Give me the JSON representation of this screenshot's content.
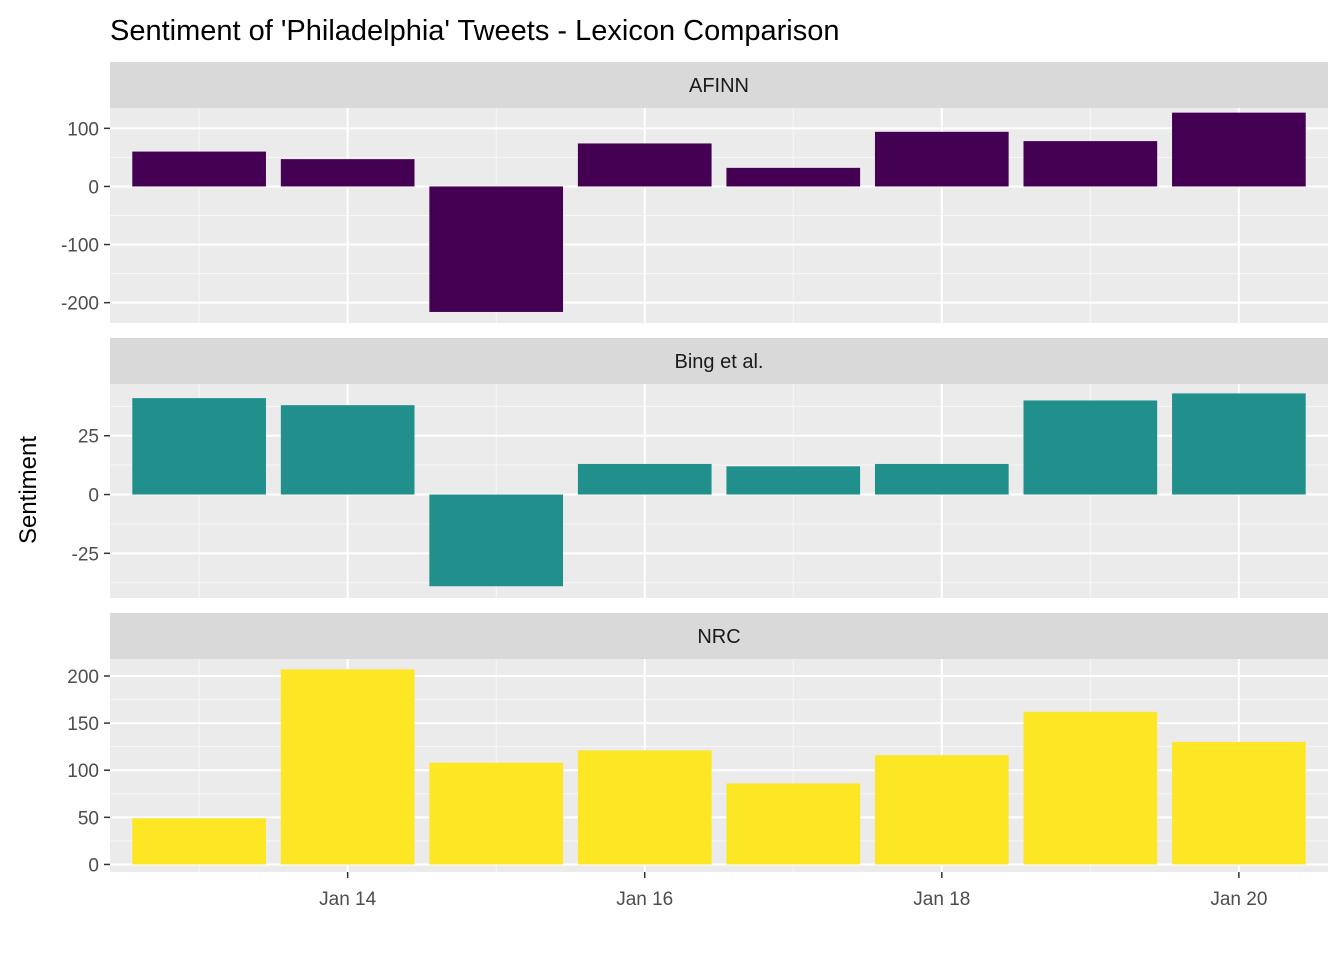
{
  "chart_data": {
    "type": "bar",
    "title": "Sentiment of 'Philadelphia' Tweets - Lexicon Comparison",
    "ylabel": "Sentiment",
    "x": [
      "2019-01-13",
      "2019-01-14",
      "2019-01-15",
      "2019-01-16",
      "2019-01-17",
      "2019-01-18",
      "2019-01-19",
      "2019-01-20"
    ],
    "x_ticks": [
      {
        "date": "2019-01-14",
        "label": "Jan 14"
      },
      {
        "date": "2019-01-16",
        "label": "Jan 16"
      },
      {
        "date": "2019-01-18",
        "label": "Jan 18"
      },
      {
        "date": "2019-01-20",
        "label": "Jan 20"
      }
    ],
    "grid": true,
    "facets": [
      {
        "name": "AFINN",
        "color": "#440154",
        "values": [
          60,
          47,
          -216,
          74,
          32,
          94,
          78,
          127
        ],
        "ylim": [
          -235,
          135
        ],
        "y_ticks": [
          100,
          0,
          -100,
          -200
        ],
        "y_tick_labels": [
          "100",
          "0",
          "-100",
          "-200"
        ]
      },
      {
        "name": "Bing et al.",
        "color": "#21908C",
        "values": [
          41,
          38,
          -39,
          13,
          12,
          13,
          40,
          43
        ],
        "ylim": [
          -44,
          47
        ],
        "y_ticks": [
          25,
          0,
          -25
        ],
        "y_tick_labels": [
          "25",
          "0",
          "-25"
        ]
      },
      {
        "name": "NRC",
        "color": "#FDE725",
        "values": [
          49,
          207,
          108,
          121,
          86,
          116,
          162,
          130
        ],
        "ylim": [
          -8,
          218
        ],
        "y_ticks": [
          200,
          150,
          100,
          50,
          0
        ],
        "y_tick_labels": [
          "200",
          "150",
          "100",
          "50",
          "0"
        ]
      }
    ]
  }
}
